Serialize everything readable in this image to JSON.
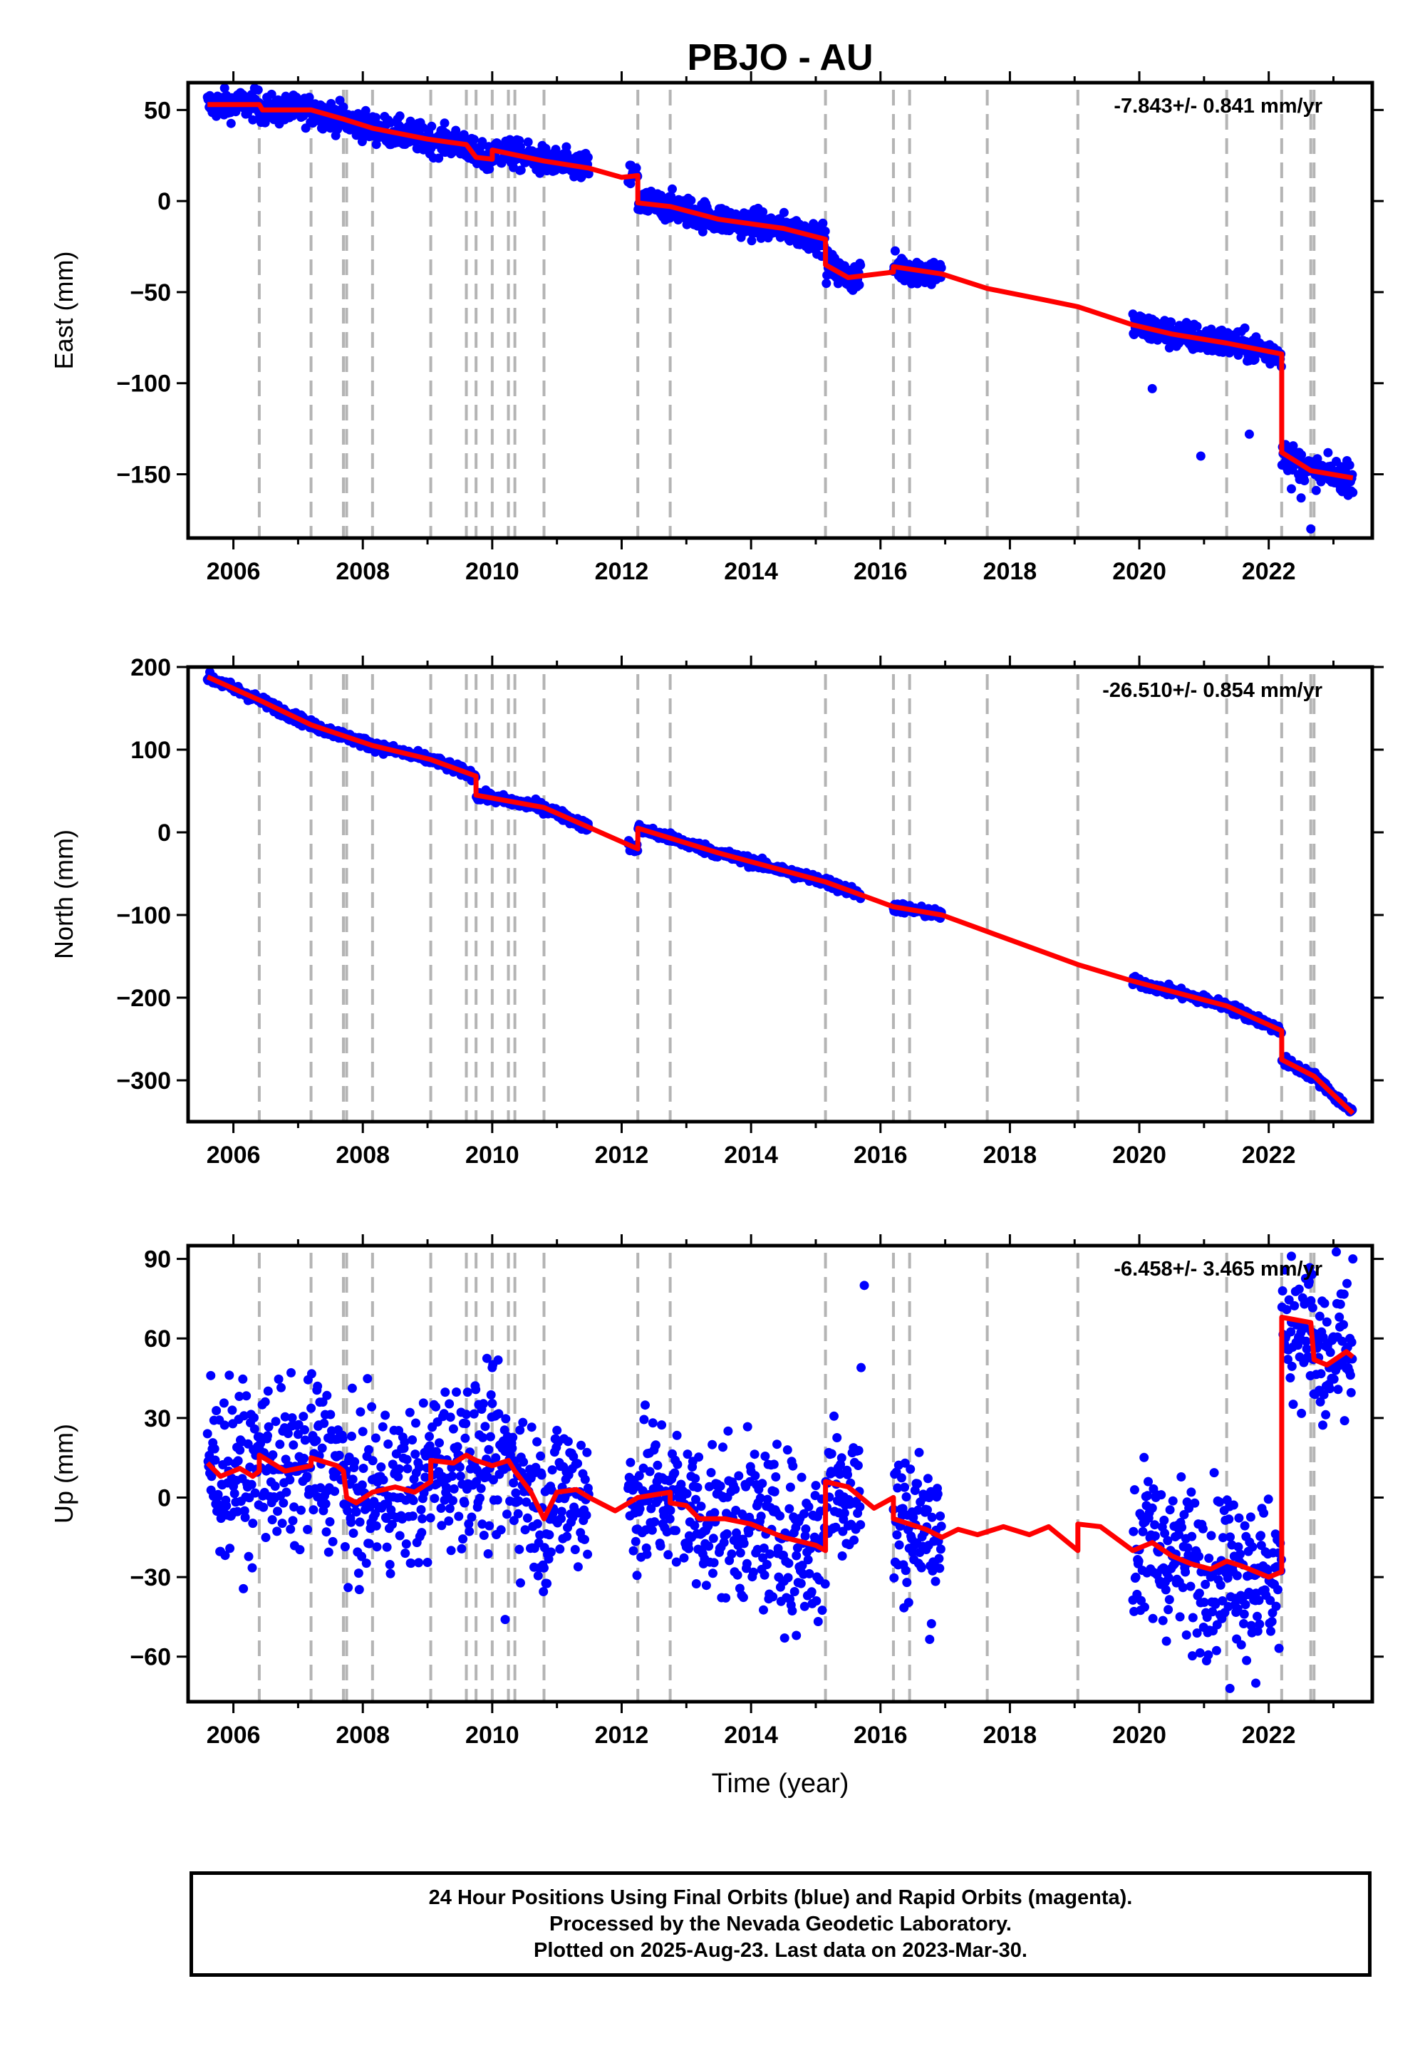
{
  "title": "PBJO - AU",
  "xlabel": "Time (year)",
  "footer": {
    "line1": "24 Hour Positions Using Final Orbits (blue) and Rapid Orbits (magenta).",
    "line2": "Processed by the Nevada Geodetic Laboratory.",
    "line3": "Plotted on 2025-Aug-23. Last data on 2023-Mar-30."
  },
  "colors": {
    "points": "#0000ff",
    "model": "#ff0000",
    "events": "#b4b4b4",
    "frame": "#000000"
  },
  "chart_data": [
    {
      "type": "scatter",
      "name": "east",
      "ylabel": "East (mm)",
      "rate_label": "-7.843+/- 0.841 mm/yr",
      "xlim": [
        2005.3,
        2023.6
      ],
      "ylim": [
        -185,
        65
      ],
      "xticks": [
        2006,
        2008,
        2010,
        2012,
        2014,
        2016,
        2018,
        2020,
        2022
      ],
      "yticks": [
        50,
        0,
        -50,
        -100,
        -150
      ],
      "ytick_labels": [
        "50",
        "0",
        "−50",
        "−100",
        "−150"
      ],
      "event_lines": [
        2006.4,
        2007.2,
        2007.7,
        2007.75,
        2008.15,
        2009.05,
        2009.6,
        2009.75,
        2010.0,
        2010.25,
        2010.35,
        2010.8,
        2012.25,
        2012.75,
        2015.15,
        2016.2,
        2016.45,
        2017.65,
        2019.05,
        2021.35,
        2022.2,
        2022.65,
        2022.7
      ],
      "data_segments": [
        [
          2005.6,
          2011.5
        ],
        [
          2012.1,
          2015.7
        ],
        [
          2016.2,
          2016.95
        ],
        [
          2019.9,
          2022.25
        ],
        [
          2022.25,
          2023.3
        ]
      ],
      "scatter": 4,
      "outliers": [
        [
          2020.2,
          -103
        ],
        [
          2020.95,
          -140
        ],
        [
          2021.7,
          -128
        ],
        [
          2022.35,
          -158
        ],
        [
          2022.5,
          -163
        ],
        [
          2022.65,
          -180
        ],
        [
          2023.3,
          -160
        ],
        [
          2023.25,
          -145
        ]
      ],
      "model": [
        [
          2005.6,
          53
        ],
        [
          2006.4,
          53
        ],
        [
          2006.45,
          50
        ],
        [
          2007.2,
          50
        ],
        [
          2007.7,
          45
        ],
        [
          2008.15,
          40
        ],
        [
          2009.0,
          34
        ],
        [
          2009.6,
          31
        ],
        [
          2009.75,
          24
        ],
        [
          2010.0,
          23
        ],
        [
          2010.0,
          28
        ],
        [
          2010.8,
          22
        ],
        [
          2011.5,
          18
        ],
        [
          2012.0,
          13
        ],
        [
          2012.25,
          14
        ],
        [
          2012.25,
          -1
        ],
        [
          2012.75,
          -3
        ],
        [
          2013.5,
          -10
        ],
        [
          2014.5,
          -15
        ],
        [
          2015.15,
          -21
        ],
        [
          2015.15,
          -35
        ],
        [
          2015.5,
          -42
        ],
        [
          2016.2,
          -39
        ],
        [
          2016.2,
          -36
        ],
        [
          2016.95,
          -40
        ],
        [
          2017.65,
          -48
        ],
        [
          2018.5,
          -54
        ],
        [
          2019.05,
          -58
        ],
        [
          2019.9,
          -68
        ],
        [
          2020.5,
          -73
        ],
        [
          2021.35,
          -78
        ],
        [
          2022.2,
          -84
        ],
        [
          2022.2,
          -138
        ],
        [
          2022.65,
          -148
        ],
        [
          2023.3,
          -152
        ]
      ]
    },
    {
      "type": "scatter",
      "name": "north",
      "ylabel": "North (mm)",
      "rate_label": "-26.510+/- 0.854 mm/yr",
      "xlim": [
        2005.3,
        2023.6
      ],
      "ylim": [
        -350,
        200
      ],
      "xticks": [
        2006,
        2008,
        2010,
        2012,
        2014,
        2016,
        2018,
        2020,
        2022
      ],
      "yticks": [
        200,
        100,
        0,
        -100,
        -200,
        -300
      ],
      "ytick_labels": [
        "200",
        "100",
        "0",
        "−100",
        "−200",
        "−300"
      ],
      "event_lines": [
        2006.4,
        2007.2,
        2007.7,
        2007.75,
        2008.15,
        2009.05,
        2009.6,
        2009.75,
        2010.0,
        2010.25,
        2010.35,
        2010.8,
        2012.25,
        2012.75,
        2015.15,
        2016.2,
        2016.45,
        2017.65,
        2019.05,
        2021.35,
        2022.2,
        2022.65,
        2022.7
      ],
      "data_segments": [
        [
          2005.6,
          2011.5
        ],
        [
          2012.1,
          2015.7
        ],
        [
          2016.2,
          2016.95
        ],
        [
          2019.9,
          2022.25
        ],
        [
          2022.25,
          2023.3
        ]
      ],
      "scatter": 3,
      "outliers": [],
      "model": [
        [
          2005.6,
          188
        ],
        [
          2006.4,
          160
        ],
        [
          2007.2,
          130
        ],
        [
          2008.15,
          105
        ],
        [
          2009.05,
          88
        ],
        [
          2009.75,
          68
        ],
        [
          2009.75,
          45
        ],
        [
          2010.8,
          30
        ],
        [
          2012.25,
          -20
        ],
        [
          2012.25,
          5
        ],
        [
          2013.5,
          -25
        ],
        [
          2015.15,
          -60
        ],
        [
          2016.2,
          -90
        ],
        [
          2016.95,
          -100
        ],
        [
          2017.65,
          -120
        ],
        [
          2019.05,
          -160
        ],
        [
          2019.9,
          -180
        ],
        [
          2021.35,
          -210
        ],
        [
          2022.2,
          -240
        ],
        [
          2022.2,
          -275
        ],
        [
          2022.7,
          -295
        ],
        [
          2023.3,
          -340
        ]
      ]
    },
    {
      "type": "scatter",
      "name": "up",
      "ylabel": "Up (mm)",
      "rate_label": "-6.458+/- 3.465 mm/yr",
      "xlim": [
        2005.3,
        2023.6
      ],
      "ylim": [
        -77,
        95
      ],
      "xticks": [
        2006,
        2008,
        2010,
        2012,
        2014,
        2016,
        2018,
        2020,
        2022
      ],
      "yticks": [
        90,
        60,
        30,
        0,
        -30,
        -60
      ],
      "ytick_labels": [
        "90",
        "60",
        "30",
        "0",
        "−30",
        "−60"
      ],
      "event_lines": [
        2006.4,
        2007.2,
        2007.7,
        2007.75,
        2008.15,
        2009.05,
        2009.6,
        2009.75,
        2010.0,
        2010.25,
        2010.35,
        2010.8,
        2012.25,
        2012.75,
        2015.15,
        2016.2,
        2016.45,
        2017.65,
        2019.05,
        2021.35,
        2022.2,
        2022.65,
        2022.7
      ],
      "data_segments": [
        [
          2005.6,
          2011.5
        ],
        [
          2012.1,
          2015.7
        ],
        [
          2016.2,
          2016.95
        ],
        [
          2019.9,
          2022.25
        ],
        [
          2022.25,
          2023.3
        ]
      ],
      "scatter": 15,
      "outliers": [
        [
          2005.65,
          46
        ],
        [
          2007.3,
          42
        ],
        [
          2010.0,
          49
        ],
        [
          2010.2,
          -46
        ],
        [
          2015.75,
          80
        ],
        [
          2015.7,
          49
        ],
        [
          2014.7,
          -52
        ],
        [
          2021.4,
          -72
        ],
        [
          2021.8,
          -70
        ],
        [
          2022.35,
          91
        ],
        [
          2023.3,
          90
        ]
      ],
      "model": [
        [
          2005.6,
          13
        ],
        [
          2005.8,
          8
        ],
        [
          2006.1,
          11
        ],
        [
          2006.3,
          8
        ],
        [
          2006.4,
          10
        ],
        [
          2006.4,
          16
        ],
        [
          2006.8,
          10
        ],
        [
          2007.2,
          12
        ],
        [
          2007.2,
          15
        ],
        [
          2007.6,
          12
        ],
        [
          2007.7,
          10
        ],
        [
          2007.75,
          0
        ],
        [
          2007.9,
          -2
        ],
        [
          2008.15,
          2
        ],
        [
          2008.5,
          4
        ],
        [
          2008.8,
          2
        ],
        [
          2009.05,
          6
        ],
        [
          2009.05,
          14
        ],
        [
          2009.4,
          13
        ],
        [
          2009.6,
          16
        ],
        [
          2009.75,
          14
        ],
        [
          2010.0,
          12
        ],
        [
          2010.25,
          14
        ],
        [
          2010.35,
          10
        ],
        [
          2010.6,
          2
        ],
        [
          2010.8,
          -8
        ],
        [
          2011.0,
          2
        ],
        [
          2011.3,
          3
        ],
        [
          2011.5,
          0
        ],
        [
          2011.9,
          -5
        ],
        [
          2012.25,
          0
        ],
        [
          2012.75,
          2
        ],
        [
          2012.75,
          -2
        ],
        [
          2013.0,
          -3
        ],
        [
          2013.2,
          -8
        ],
        [
          2013.6,
          -8
        ],
        [
          2014.0,
          -10
        ],
        [
          2014.5,
          -15
        ],
        [
          2015.0,
          -18
        ],
        [
          2015.15,
          -20
        ],
        [
          2015.15,
          6
        ],
        [
          2015.5,
          4
        ],
        [
          2015.9,
          -4
        ],
        [
          2016.2,
          0
        ],
        [
          2016.2,
          -8
        ],
        [
          2016.45,
          -10
        ],
        [
          2016.7,
          -12
        ],
        [
          2016.95,
          -15
        ],
        [
          2017.2,
          -12
        ],
        [
          2017.5,
          -14
        ],
        [
          2017.9,
          -11
        ],
        [
          2018.3,
          -14
        ],
        [
          2018.6,
          -11
        ],
        [
          2019.05,
          -20
        ],
        [
          2019.05,
          -10
        ],
        [
          2019.4,
          -11
        ],
        [
          2019.9,
          -20
        ],
        [
          2020.2,
          -17
        ],
        [
          2020.5,
          -22
        ],
        [
          2020.8,
          -25
        ],
        [
          2021.1,
          -27
        ],
        [
          2021.35,
          -24
        ],
        [
          2021.6,
          -26
        ],
        [
          2022.0,
          -30
        ],
        [
          2022.2,
          -28
        ],
        [
          2022.2,
          68
        ],
        [
          2022.65,
          66
        ],
        [
          2022.7,
          52
        ],
        [
          2022.9,
          50
        ],
        [
          2023.2,
          55
        ],
        [
          2023.3,
          53
        ]
      ]
    }
  ]
}
